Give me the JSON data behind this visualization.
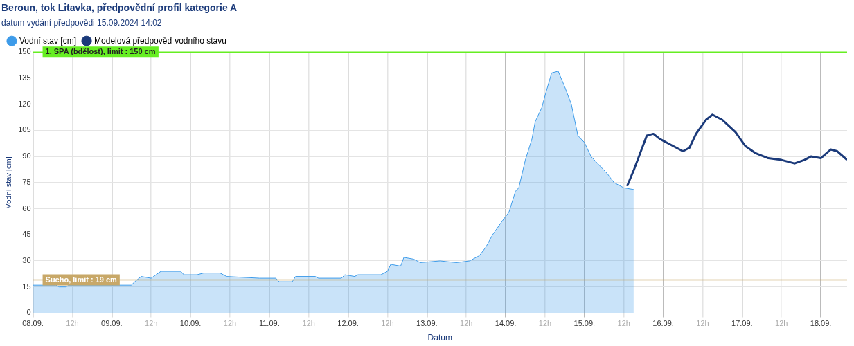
{
  "chart_data": {
    "type": "area",
    "title": "Beroun, tok Litavka, předpovědní profil kategorie A",
    "subtitle": "datum vydání předpovědi 15.09.2024 14:02",
    "xlabel": "Datum",
    "ylabel": "Vodní stav [cm]",
    "xlim": [
      "2024-09-08T00:00",
      "2024-09-18T08:00"
    ],
    "xticks": [
      {
        "value": "2024-09-08T00:00",
        "label": "08.09."
      },
      {
        "value": "2024-09-08T12:00",
        "label": "12h"
      },
      {
        "value": "2024-09-09T00:00",
        "label": "09.09."
      },
      {
        "value": "2024-09-09T12:00",
        "label": "12h"
      },
      {
        "value": "2024-09-10T00:00",
        "label": "10.09."
      },
      {
        "value": "2024-09-10T12:00",
        "label": "12h"
      },
      {
        "value": "2024-09-11T00:00",
        "label": "11.09."
      },
      {
        "value": "2024-09-11T12:00",
        "label": "12h"
      },
      {
        "value": "2024-09-12T00:00",
        "label": "12.09."
      },
      {
        "value": "2024-09-12T12:00",
        "label": "12h"
      },
      {
        "value": "2024-09-13T00:00",
        "label": "13.09."
      },
      {
        "value": "2024-09-13T12:00",
        "label": "12h"
      },
      {
        "value": "2024-09-14T00:00",
        "label": "14.09."
      },
      {
        "value": "2024-09-14T12:00",
        "label": "12h"
      },
      {
        "value": "2024-09-15T00:00",
        "label": "15.09."
      },
      {
        "value": "2024-09-15T12:00",
        "label": "12h"
      },
      {
        "value": "2024-09-16T00:00",
        "label": "16.09."
      },
      {
        "value": "2024-09-16T12:00",
        "label": "12h"
      },
      {
        "value": "2024-09-17T00:00",
        "label": "17.09."
      },
      {
        "value": "2024-09-17T12:00",
        "label": "12h"
      },
      {
        "value": "2024-09-18T00:00",
        "label": "18.09."
      }
    ],
    "ylim": [
      0,
      150
    ],
    "yticks": [
      0,
      15,
      30,
      45,
      60,
      75,
      90,
      105,
      120,
      135,
      150
    ],
    "grid": true,
    "legend": "top left",
    "marker": "none",
    "series": [
      {
        "name": "Vodní stav [cm]",
        "type": "area",
        "color": "#3d9be9",
        "x": [
          "2024-09-08T00:00",
          "2024-09-08T07:00",
          "2024-09-08T08:00",
          "2024-09-08T10:00",
          "2024-09-08T11:00",
          "2024-09-09T06:00",
          "2024-09-09T07:00",
          "2024-09-09T09:00",
          "2024-09-09T12:00",
          "2024-09-09T15:00",
          "2024-09-09T21:00",
          "2024-09-09T22:00",
          "2024-09-10T02:00",
          "2024-09-10T04:00",
          "2024-09-10T09:00",
          "2024-09-10T11:00",
          "2024-09-10T21:00",
          "2024-09-11T02:00",
          "2024-09-11T03:00",
          "2024-09-11T07:00",
          "2024-09-11T08:00",
          "2024-09-11T14:00",
          "2024-09-11T15:00",
          "2024-09-11T22:00",
          "2024-09-11T23:00",
          "2024-09-12T02:00",
          "2024-09-12T03:00",
          "2024-09-12T10:00",
          "2024-09-12T12:00",
          "2024-09-12T13:00",
          "2024-09-12T16:00",
          "2024-09-12T17:00",
          "2024-09-12T20:00",
          "2024-09-12T22:00",
          "2024-09-13T04:00",
          "2024-09-13T09:00",
          "2024-09-13T13:00",
          "2024-09-13T16:00",
          "2024-09-13T18:00",
          "2024-09-13T20:00",
          "2024-09-13T23:00",
          "2024-09-14T01:00",
          "2024-09-14T03:00",
          "2024-09-14T04:00",
          "2024-09-14T06:00",
          "2024-09-14T08:00",
          "2024-09-14T09:00",
          "2024-09-14T11:00",
          "2024-09-14T12:00",
          "2024-09-14T14:00",
          "2024-09-14T16:00",
          "2024-09-14T18:00",
          "2024-09-14T20:00",
          "2024-09-14T22:00",
          "2024-09-15T00:00",
          "2024-09-15T02:00",
          "2024-09-15T04:00",
          "2024-09-15T07:00",
          "2024-09-15T09:00",
          "2024-09-15T12:00",
          "2024-09-15T15:00"
        ],
        "values": [
          16,
          16,
          15,
          15,
          16,
          16,
          18,
          21,
          20,
          24,
          24,
          22,
          22,
          23,
          23,
          21,
          20,
          20,
          18,
          18,
          21,
          21,
          20,
          20,
          22,
          21,
          22,
          22,
          24,
          28,
          27,
          32,
          31,
          29,
          30,
          29,
          30,
          33,
          38,
          45,
          53,
          58,
          70,
          72,
          88,
          100,
          110,
          118,
          125,
          138,
          139,
          130,
          120,
          102,
          98,
          90,
          86,
          80,
          75,
          72,
          71
        ]
      },
      {
        "name": "Modelová předpověď vodního stavu",
        "type": "line",
        "color": "#1b3a7a",
        "x": [
          "2024-09-15T13:00",
          "2024-09-15T15:00",
          "2024-09-15T17:00",
          "2024-09-15T19:00",
          "2024-09-15T21:00",
          "2024-09-15T23:00",
          "2024-09-16T02:00",
          "2024-09-16T06:00",
          "2024-09-16T08:00",
          "2024-09-16T10:00",
          "2024-09-16T13:00",
          "2024-09-16T15:00",
          "2024-09-16T18:00",
          "2024-09-16T22:00",
          "2024-09-17T01:00",
          "2024-09-17T04:00",
          "2024-09-17T08:00",
          "2024-09-17T12:00",
          "2024-09-17T16:00",
          "2024-09-17T19:00",
          "2024-09-17T21:00",
          "2024-09-18T00:00",
          "2024-09-18T03:00",
          "2024-09-18T05:00",
          "2024-09-18T08:00"
        ],
        "values": [
          73,
          82,
          92,
          102,
          103,
          100,
          97,
          93,
          95,
          103,
          111,
          114,
          111,
          104,
          96,
          92,
          89,
          88,
          86,
          88,
          90,
          89,
          94,
          93,
          88
        ]
      }
    ],
    "ref_lines": [
      {
        "axis": "y",
        "value": 150,
        "label": "1. SPA (bdělost), limit : 150 cm",
        "color": "#66ee22"
      },
      {
        "axis": "y",
        "value": 19,
        "label": "Sucho, limit : 19 cm",
        "color": "#c8a868"
      }
    ]
  }
}
